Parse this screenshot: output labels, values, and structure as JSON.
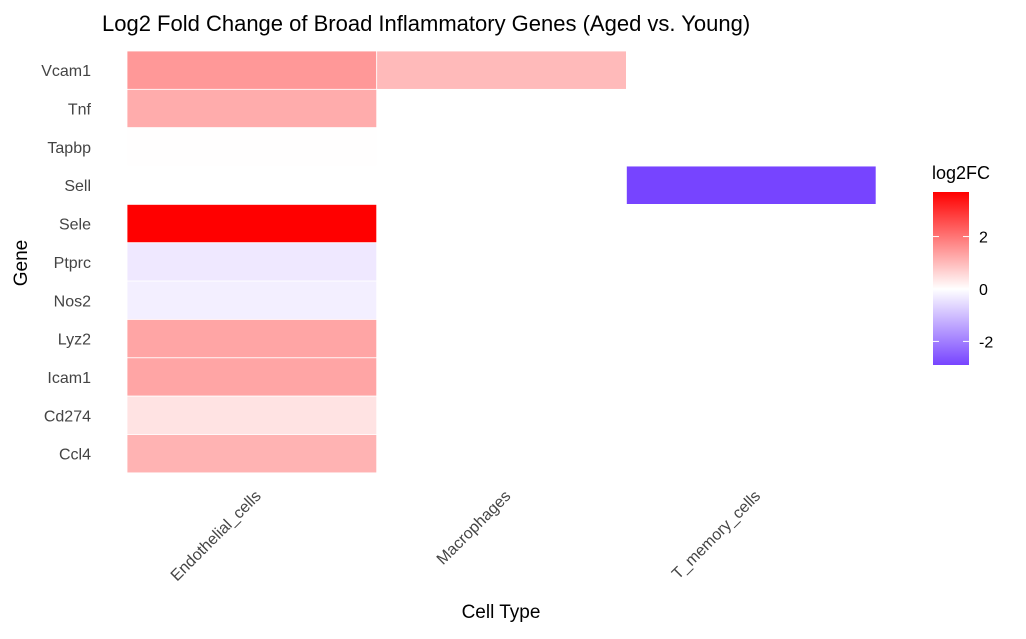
{
  "chart_data": {
    "type": "heatmap",
    "title": "Log2 Fold Change of Broad Inflammatory Genes (Aged vs. Young)",
    "xlabel": "Cell Type",
    "ylabel": "Gene",
    "x_categories": [
      "Endothelial_cells",
      "Macrophages",
      "T_memory_cells"
    ],
    "y_categories": [
      "Vcam1",
      "Tnf",
      "Tapbp",
      "Sell",
      "Sele",
      "Ptprc",
      "Nos2",
      "Lyz2",
      "Icam1",
      "Cd274",
      "Ccl4"
    ],
    "cells": [
      {
        "x": "Endothelial_cells",
        "y": "Vcam1",
        "value": 1.5
      },
      {
        "x": "Endothelial_cells",
        "y": "Tnf",
        "value": 1.2
      },
      {
        "x": "Endothelial_cells",
        "y": "Tapbp",
        "value": 0.02
      },
      {
        "x": "Endothelial_cells",
        "y": "Sele",
        "value": 3.7
      },
      {
        "x": "Endothelial_cells",
        "y": "Ptprc",
        "value": -0.35
      },
      {
        "x": "Endothelial_cells",
        "y": "Nos2",
        "value": -0.25
      },
      {
        "x": "Endothelial_cells",
        "y": "Lyz2",
        "value": 1.3
      },
      {
        "x": "Endothelial_cells",
        "y": "Icam1",
        "value": 1.3
      },
      {
        "x": "Endothelial_cells",
        "y": "Cd274",
        "value": 0.4
      },
      {
        "x": "Endothelial_cells",
        "y": "Ccl4",
        "value": 1.1
      },
      {
        "x": "Macrophages",
        "y": "Vcam1",
        "value": 1.0
      },
      {
        "x": "T_memory_cells",
        "y": "Sell",
        "value": -2.9
      }
    ],
    "legend": {
      "title": "log2FC",
      "ticks": [
        2,
        0,
        -2
      ],
      "range": [
        -2.9,
        3.7
      ],
      "low_color": "#7744ff",
      "mid_color": "#ffffff",
      "high_color": "#ff0000",
      "placement": "right"
    },
    "grid": false
  }
}
